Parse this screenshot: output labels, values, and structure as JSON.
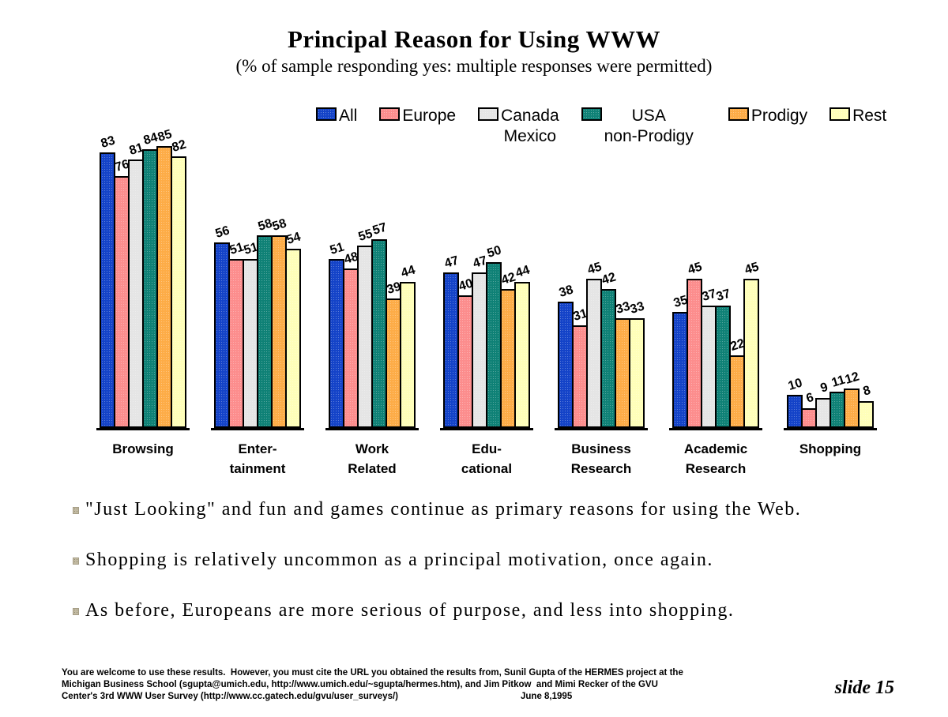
{
  "slide": {
    "title": "Principal Reason for Using WWW",
    "subtitle": "(% of sample responding yes: multiple responses were permitted)",
    "slide_number": "slide 15"
  },
  "legend": {
    "items": [
      {
        "label_line1": "All",
        "label_line2": "",
        "color": "#1443C8"
      },
      {
        "label_line1": "Europe",
        "label_line2": "",
        "color": "#FC8D8D"
      },
      {
        "label_line1": "Canada",
        "label_line2": "Mexico",
        "color": "#E5E5E5"
      },
      {
        "label_line1": "USA",
        "label_line2": "non-Prodigy",
        "color": "#0F8176"
      },
      {
        "label_line1": "Prodigy",
        "label_line2": "",
        "color": "#FDAC47"
      },
      {
        "label_line1": "Rest",
        "label_line2": "",
        "color": "#FFFFB9"
      }
    ]
  },
  "chart_data": {
    "type": "bar",
    "title": "Principal Reason for Using WWW",
    "subtitle": "(% of sample responding yes: multiple responses were permitted)",
    "xlabel": "",
    "ylabel": "% of sample responding yes",
    "ylim": [
      0,
      90
    ],
    "grid": false,
    "legend_position": "top",
    "categories": [
      "Browsing",
      "Enter-tainment",
      "Work Related",
      "Edu-cational",
      "Business Research",
      "Academic Research",
      "Shopping"
    ],
    "category_label_lines": [
      [
        "Browsing",
        ""
      ],
      [
        "Enter-",
        "tainment"
      ],
      [
        "Work",
        "Related"
      ],
      [
        "Edu-",
        "cational"
      ],
      [
        "Business",
        "Research"
      ],
      [
        "Academic",
        "Research"
      ],
      [
        "Shopping",
        ""
      ]
    ],
    "series": [
      {
        "name": "All",
        "color": "#1443C8",
        "values": [
          83,
          56,
          51,
          47,
          38,
          35,
          10
        ]
      },
      {
        "name": "Europe",
        "color": "#FC8D8D",
        "values": [
          76,
          51,
          48,
          40,
          31,
          45,
          6
        ]
      },
      {
        "name": "Canada Mexico",
        "color": "#E5E5E5",
        "values": [
          81,
          51,
          55,
          47,
          45,
          37,
          9
        ]
      },
      {
        "name": "USA non-Prodigy",
        "color": "#0F8176",
        "values": [
          84,
          58,
          57,
          50,
          42,
          37,
          11
        ]
      },
      {
        "name": "Prodigy",
        "color": "#FDAC47",
        "values": [
          85,
          58,
          39,
          42,
          33,
          22,
          12
        ]
      },
      {
        "name": "Rest",
        "color": "#FFFFB9",
        "values": [
          82,
          54,
          44,
          44,
          33,
          45,
          8
        ]
      }
    ]
  },
  "bullets": [
    {
      "text": "\"Just Looking\" and fun and games continue as primary reasons for using the Web."
    },
    {
      "text": "Shopping is relatively uncommon as a principal motivation, once again."
    },
    {
      "text": "As before, Europeans are more serious of purpose, and less into shopping."
    }
  ],
  "footer": {
    "line1": "You are welcome to use these results.  However, you must cite the URL you obtained the results from, Sunil Gupta of the HERMES project at the",
    "line2": "Michigan Business School (sgupta@umich.edu, http://www.umich.edu/~sgupta/hermes.htm), and Jim Pitkow  and Mimi Recker of the GVU",
    "line3": "Center's 3rd WWW User Survey (http://www.cc.gatech.edu/gvu/user_surveys/)",
    "date": "June 8,1995"
  }
}
